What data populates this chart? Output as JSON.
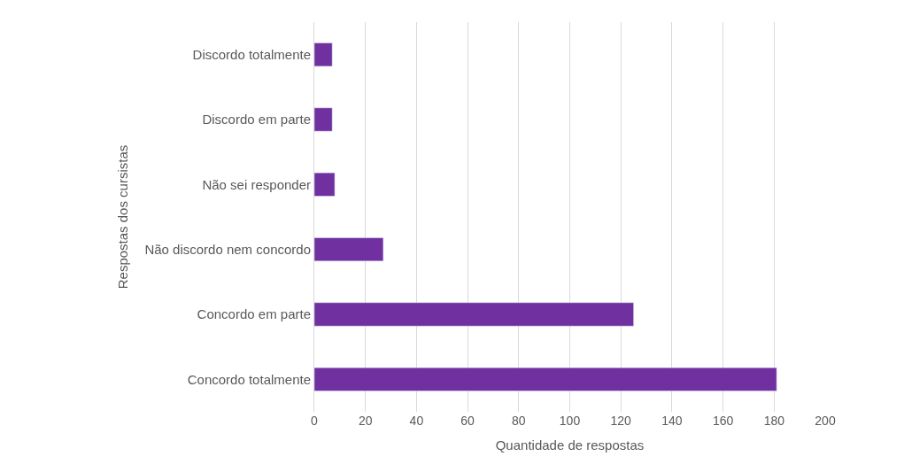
{
  "chart_data": {
    "type": "bar",
    "orientation": "horizontal",
    "xlabel": "Quantidade de respostas",
    "ylabel": "Respostas dos cursistas",
    "categories": [
      "Discordo totalmente",
      "Discordo em parte",
      "Não sei responder",
      "Não discordo nem concordo",
      "Concordo em parte",
      "Concordo totalmente"
    ],
    "values": [
      7,
      7,
      8,
      27,
      125,
      181
    ],
    "color": "#7030a0",
    "xlim": [
      0,
      200
    ],
    "xticks": [
      0,
      20,
      40,
      60,
      80,
      100,
      120,
      140,
      160,
      180,
      200
    ],
    "grid": "x"
  }
}
